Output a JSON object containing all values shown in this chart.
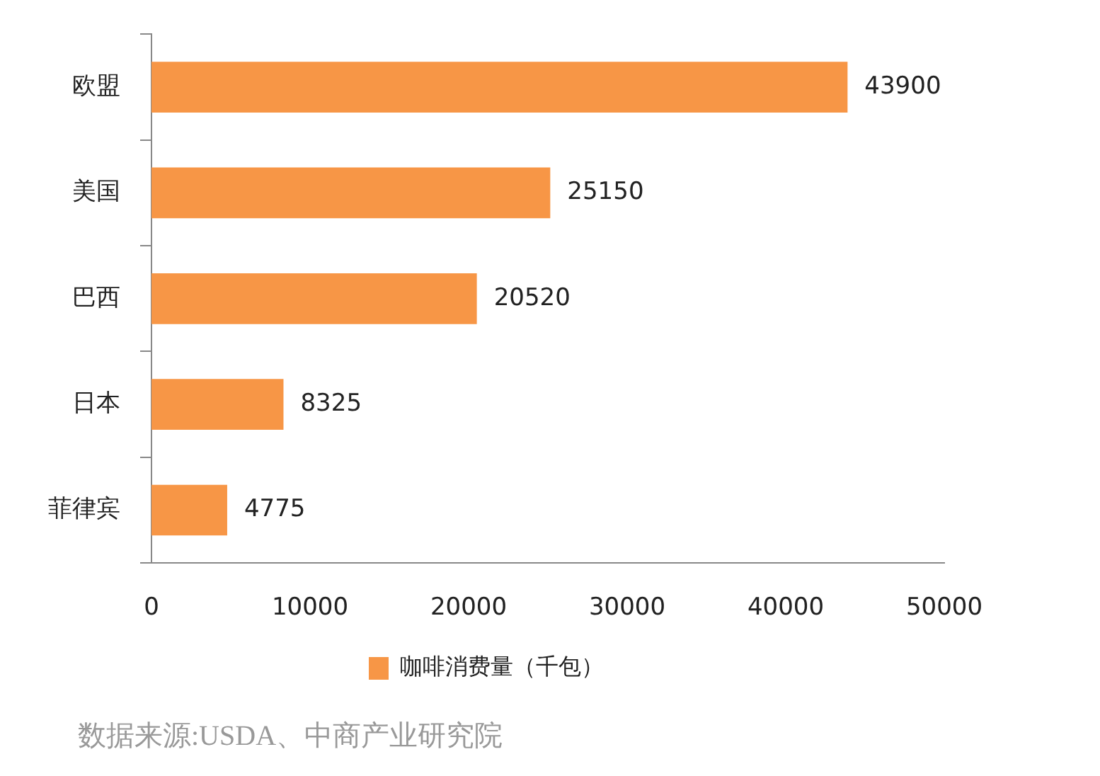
{
  "chart_data": {
    "type": "bar",
    "orientation": "horizontal",
    "categories": [
      "欧盟",
      "美国",
      "巴西",
      "日本",
      "菲律宾"
    ],
    "series": [
      {
        "name": "咖啡消费量（千包）",
        "color": "#f79646",
        "values": [
          43900,
          25150,
          20520,
          8325,
          4775
        ]
      }
    ],
    "xlim": [
      0,
      50000
    ],
    "xticks": [
      0,
      10000,
      20000,
      30000,
      40000,
      50000
    ],
    "grid": false,
    "legend": "bottom",
    "data_labels": true,
    "annotations": [
      "数据来源:USDA、中商产业研究院"
    ]
  }
}
